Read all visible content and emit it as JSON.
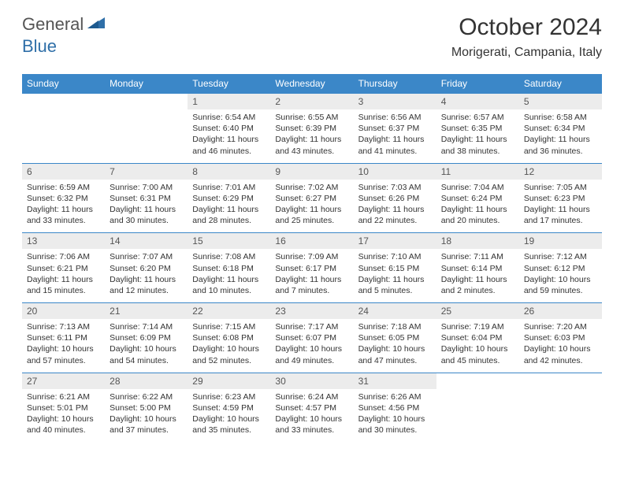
{
  "logo": {
    "text1": "General",
    "text2": "Blue"
  },
  "title": "October 2024",
  "location": "Morigerati, Campania, Italy",
  "colors": {
    "header_bg": "#3b87c8",
    "header_text": "#ffffff",
    "daynum_bg": "#ececec",
    "daynum_text": "#555555",
    "body_text": "#333333",
    "logo_blue": "#2f6fa8",
    "row_border": "#3b87c8"
  },
  "weekdays": [
    "Sunday",
    "Monday",
    "Tuesday",
    "Wednesday",
    "Thursday",
    "Friday",
    "Saturday"
  ],
  "weeks": [
    [
      {
        "blank": true
      },
      {
        "blank": true
      },
      {
        "n": "1",
        "sr": "6:54 AM",
        "ss": "6:40 PM",
        "dl": "11 hours and 46 minutes."
      },
      {
        "n": "2",
        "sr": "6:55 AM",
        "ss": "6:39 PM",
        "dl": "11 hours and 43 minutes."
      },
      {
        "n": "3",
        "sr": "6:56 AM",
        "ss": "6:37 PM",
        "dl": "11 hours and 41 minutes."
      },
      {
        "n": "4",
        "sr": "6:57 AM",
        "ss": "6:35 PM",
        "dl": "11 hours and 38 minutes."
      },
      {
        "n": "5",
        "sr": "6:58 AM",
        "ss": "6:34 PM",
        "dl": "11 hours and 36 minutes."
      }
    ],
    [
      {
        "n": "6",
        "sr": "6:59 AM",
        "ss": "6:32 PM",
        "dl": "11 hours and 33 minutes."
      },
      {
        "n": "7",
        "sr": "7:00 AM",
        "ss": "6:31 PM",
        "dl": "11 hours and 30 minutes."
      },
      {
        "n": "8",
        "sr": "7:01 AM",
        "ss": "6:29 PM",
        "dl": "11 hours and 28 minutes."
      },
      {
        "n": "9",
        "sr": "7:02 AM",
        "ss": "6:27 PM",
        "dl": "11 hours and 25 minutes."
      },
      {
        "n": "10",
        "sr": "7:03 AM",
        "ss": "6:26 PM",
        "dl": "11 hours and 22 minutes."
      },
      {
        "n": "11",
        "sr": "7:04 AM",
        "ss": "6:24 PM",
        "dl": "11 hours and 20 minutes."
      },
      {
        "n": "12",
        "sr": "7:05 AM",
        "ss": "6:23 PM",
        "dl": "11 hours and 17 minutes."
      }
    ],
    [
      {
        "n": "13",
        "sr": "7:06 AM",
        "ss": "6:21 PM",
        "dl": "11 hours and 15 minutes."
      },
      {
        "n": "14",
        "sr": "7:07 AM",
        "ss": "6:20 PM",
        "dl": "11 hours and 12 minutes."
      },
      {
        "n": "15",
        "sr": "7:08 AM",
        "ss": "6:18 PM",
        "dl": "11 hours and 10 minutes."
      },
      {
        "n": "16",
        "sr": "7:09 AM",
        "ss": "6:17 PM",
        "dl": "11 hours and 7 minutes."
      },
      {
        "n": "17",
        "sr": "7:10 AM",
        "ss": "6:15 PM",
        "dl": "11 hours and 5 minutes."
      },
      {
        "n": "18",
        "sr": "7:11 AM",
        "ss": "6:14 PM",
        "dl": "11 hours and 2 minutes."
      },
      {
        "n": "19",
        "sr": "7:12 AM",
        "ss": "6:12 PM",
        "dl": "10 hours and 59 minutes."
      }
    ],
    [
      {
        "n": "20",
        "sr": "7:13 AM",
        "ss": "6:11 PM",
        "dl": "10 hours and 57 minutes."
      },
      {
        "n": "21",
        "sr": "7:14 AM",
        "ss": "6:09 PM",
        "dl": "10 hours and 54 minutes."
      },
      {
        "n": "22",
        "sr": "7:15 AM",
        "ss": "6:08 PM",
        "dl": "10 hours and 52 minutes."
      },
      {
        "n": "23",
        "sr": "7:17 AM",
        "ss": "6:07 PM",
        "dl": "10 hours and 49 minutes."
      },
      {
        "n": "24",
        "sr": "7:18 AM",
        "ss": "6:05 PM",
        "dl": "10 hours and 47 minutes."
      },
      {
        "n": "25",
        "sr": "7:19 AM",
        "ss": "6:04 PM",
        "dl": "10 hours and 45 minutes."
      },
      {
        "n": "26",
        "sr": "7:20 AM",
        "ss": "6:03 PM",
        "dl": "10 hours and 42 minutes."
      }
    ],
    [
      {
        "n": "27",
        "sr": "6:21 AM",
        "ss": "5:01 PM",
        "dl": "10 hours and 40 minutes."
      },
      {
        "n": "28",
        "sr": "6:22 AM",
        "ss": "5:00 PM",
        "dl": "10 hours and 37 minutes."
      },
      {
        "n": "29",
        "sr": "6:23 AM",
        "ss": "4:59 PM",
        "dl": "10 hours and 35 minutes."
      },
      {
        "n": "30",
        "sr": "6:24 AM",
        "ss": "4:57 PM",
        "dl": "10 hours and 33 minutes."
      },
      {
        "n": "31",
        "sr": "6:26 AM",
        "ss": "4:56 PM",
        "dl": "10 hours and 30 minutes."
      },
      {
        "blank": true
      },
      {
        "blank": true
      }
    ]
  ],
  "labels": {
    "sunrise": "Sunrise:",
    "sunset": "Sunset:",
    "daylight": "Daylight:"
  }
}
